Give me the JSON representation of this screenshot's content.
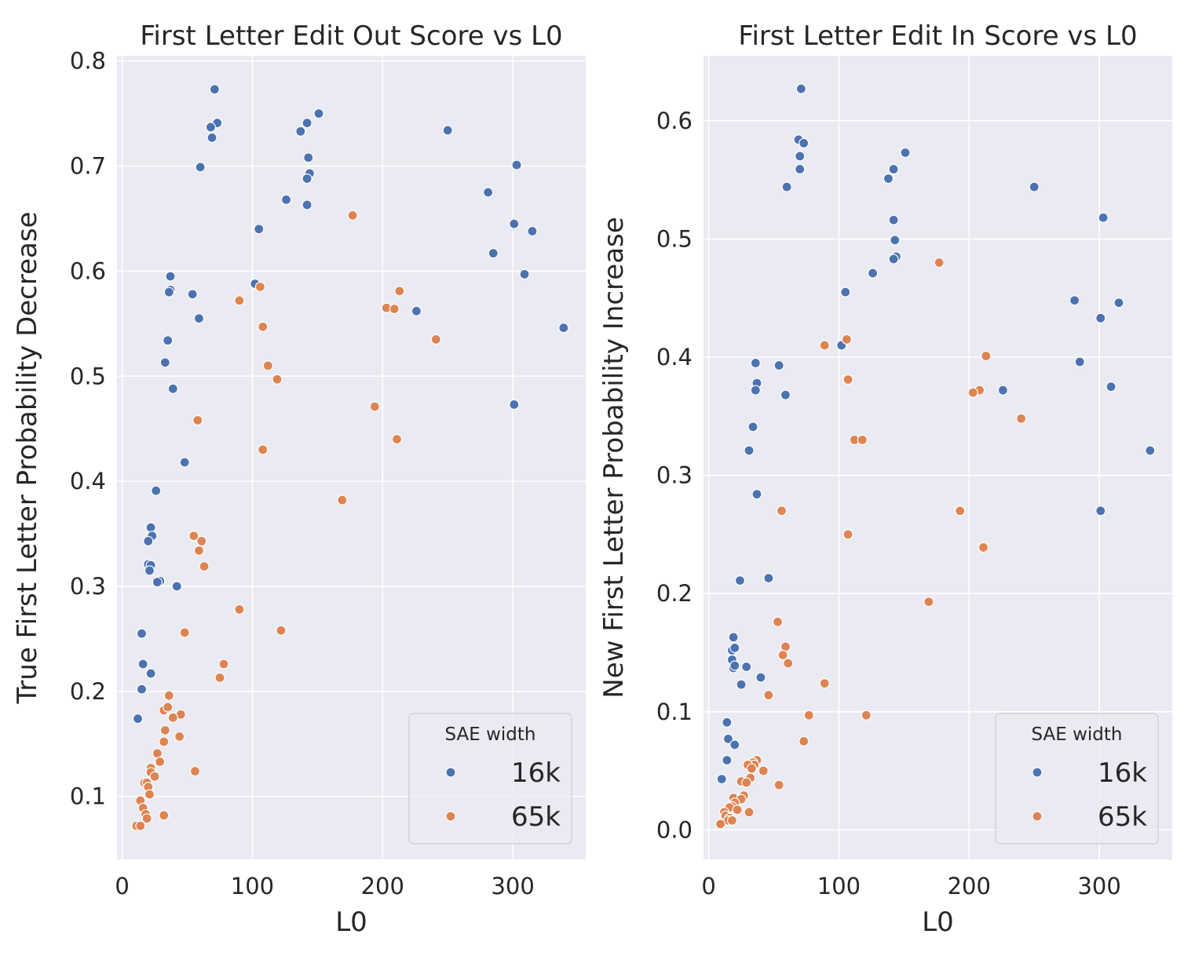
{
  "chart_data": [
    {
      "type": "scatter",
      "title": "First Letter Edit Out Score vs L0",
      "xlabel": "L0",
      "ylabel": "True First Letter Probability Decrease",
      "xlim": [
        -4,
        356
      ],
      "ylim": [
        0.04,
        0.805
      ],
      "xticks": [
        0,
        100,
        200,
        300
      ],
      "yticks": [
        0.1,
        0.2,
        0.3,
        0.4,
        0.5,
        0.6,
        0.7,
        0.8
      ],
      "xtick_labels": [
        "0",
        "100",
        "200",
        "300"
      ],
      "ytick_labels": [
        "0.1",
        "0.2",
        "0.3",
        "0.4",
        "0.5",
        "0.6",
        "0.7",
        "0.8"
      ],
      "grid": true,
      "legend": {
        "title": "SAE width",
        "placement": "lower-right"
      },
      "series": [
        {
          "name": "16k",
          "color": "#4c72b0",
          "points": [
            [
              71,
              0.773
            ],
            [
              73,
              0.741
            ],
            [
              68,
              0.737
            ],
            [
              69,
              0.727
            ],
            [
              60,
              0.699
            ],
            [
              151,
              0.75
            ],
            [
              142,
              0.741
            ],
            [
              137,
              0.733
            ],
            [
              143,
              0.708
            ],
            [
              144,
              0.693
            ],
            [
              142,
              0.688
            ],
            [
              126,
              0.668
            ],
            [
              142,
              0.663
            ],
            [
              250,
              0.734
            ],
            [
              303,
              0.701
            ],
            [
              281,
              0.675
            ],
            [
              301,
              0.645
            ],
            [
              315,
              0.638
            ],
            [
              285,
              0.617
            ],
            [
              105,
              0.64
            ],
            [
              102,
              0.588
            ],
            [
              309,
              0.597
            ],
            [
              226,
              0.562
            ],
            [
              339,
              0.546
            ],
            [
              301,
              0.473
            ],
            [
              37,
              0.595
            ],
            [
              37,
              0.582
            ],
            [
              36,
              0.58
            ],
            [
              54,
              0.578
            ],
            [
              59,
              0.555
            ],
            [
              35,
              0.534
            ],
            [
              33,
              0.513
            ],
            [
              39,
              0.488
            ],
            [
              48,
              0.418
            ],
            [
              26,
              0.391
            ],
            [
              22,
              0.356
            ],
            [
              23,
              0.348
            ],
            [
              20,
              0.343
            ],
            [
              20,
              0.321
            ],
            [
              22,
              0.32
            ],
            [
              21,
              0.315
            ],
            [
              29,
              0.305
            ],
            [
              27,
              0.304
            ],
            [
              42,
              0.3
            ],
            [
              15,
              0.255
            ],
            [
              16,
              0.226
            ],
            [
              22,
              0.217
            ],
            [
              15,
              0.202
            ],
            [
              12,
              0.174
            ]
          ]
        },
        {
          "name": "65k",
          "color": "#dd8452",
          "points": [
            [
              177,
              0.653
            ],
            [
              213,
              0.581
            ],
            [
              106,
              0.585
            ],
            [
              90,
              0.572
            ],
            [
              203,
              0.565
            ],
            [
              209,
              0.564
            ],
            [
              108,
              0.547
            ],
            [
              241,
              0.535
            ],
            [
              112,
              0.51
            ],
            [
              119,
              0.497
            ],
            [
              194,
              0.471
            ],
            [
              58,
              0.458
            ],
            [
              211,
              0.44
            ],
            [
              108,
              0.43
            ],
            [
              169,
              0.382
            ],
            [
              55,
              0.348
            ],
            [
              61,
              0.343
            ],
            [
              59,
              0.334
            ],
            [
              63,
              0.319
            ],
            [
              90,
              0.278
            ],
            [
              48,
              0.256
            ],
            [
              122,
              0.258
            ],
            [
              78,
              0.226
            ],
            [
              75,
              0.213
            ],
            [
              36,
              0.196
            ],
            [
              32,
              0.182
            ],
            [
              35,
              0.185
            ],
            [
              45,
              0.178
            ],
            [
              39,
              0.175
            ],
            [
              33,
              0.163
            ],
            [
              44,
              0.157
            ],
            [
              32,
              0.152
            ],
            [
              27,
              0.141
            ],
            [
              29,
              0.133
            ],
            [
              22,
              0.127
            ],
            [
              22,
              0.123
            ],
            [
              25,
              0.119
            ],
            [
              56,
              0.124
            ],
            [
              17,
              0.113
            ],
            [
              19,
              0.113
            ],
            [
              20,
              0.109
            ],
            [
              21,
              0.102
            ],
            [
              14,
              0.096
            ],
            [
              16,
              0.089
            ],
            [
              18,
              0.083
            ],
            [
              19,
              0.079
            ],
            [
              32,
              0.082
            ],
            [
              11,
              0.072
            ],
            [
              14,
              0.072
            ]
          ]
        }
      ]
    },
    {
      "type": "scatter",
      "title": "First Letter Edit In Score vs L0",
      "xlabel": "L0",
      "ylabel": "New First Letter Probability Increase",
      "xlim": [
        -4,
        356
      ],
      "ylim": [
        -0.025,
        0.655
      ],
      "xticks": [
        0,
        100,
        200,
        300
      ],
      "yticks": [
        0.0,
        0.1,
        0.2,
        0.3,
        0.4,
        0.5,
        0.6
      ],
      "xtick_labels": [
        "0",
        "100",
        "200",
        "300"
      ],
      "ytick_labels": [
        "0.0",
        "0.1",
        "0.2",
        "0.3",
        "0.4",
        "0.5",
        "0.6"
      ],
      "grid": true,
      "legend": {
        "title": "SAE width",
        "placement": "lower-right"
      },
      "series": [
        {
          "name": "16k",
          "color": "#4c72b0",
          "points": [
            [
              71,
              0.627
            ],
            [
              69,
              0.584
            ],
            [
              73,
              0.581
            ],
            [
              70,
              0.57
            ],
            [
              70,
              0.559
            ],
            [
              60,
              0.544
            ],
            [
              151,
              0.573
            ],
            [
              142,
              0.559
            ],
            [
              138,
              0.551
            ],
            [
              142,
              0.516
            ],
            [
              143,
              0.499
            ],
            [
              144,
              0.485
            ],
            [
              142,
              0.483
            ],
            [
              126,
              0.471
            ],
            [
              105,
              0.455
            ],
            [
              102,
              0.41
            ],
            [
              250,
              0.544
            ],
            [
              303,
              0.518
            ],
            [
              281,
              0.448
            ],
            [
              315,
              0.446
            ],
            [
              301,
              0.433
            ],
            [
              285,
              0.396
            ],
            [
              309,
              0.375
            ],
            [
              226,
              0.372
            ],
            [
              339,
              0.321
            ],
            [
              301,
              0.27
            ],
            [
              36,
              0.395
            ],
            [
              54,
              0.393
            ],
            [
              37,
              0.378
            ],
            [
              36,
              0.372
            ],
            [
              59,
              0.368
            ],
            [
              34,
              0.341
            ],
            [
              31,
              0.321
            ],
            [
              37,
              0.284
            ],
            [
              46,
              0.213
            ],
            [
              24,
              0.211
            ],
            [
              19,
              0.163
            ],
            [
              18,
              0.152
            ],
            [
              20,
              0.154
            ],
            [
              18,
              0.144
            ],
            [
              19,
              0.137
            ],
            [
              20,
              0.139
            ],
            [
              29,
              0.138
            ],
            [
              40,
              0.129
            ],
            [
              25,
              0.123
            ],
            [
              14,
              0.091
            ],
            [
              15,
              0.077
            ],
            [
              20,
              0.072
            ],
            [
              14,
              0.059
            ],
            [
              10,
              0.043
            ]
          ]
        },
        {
          "name": "65k",
          "color": "#dd8452",
          "points": [
            [
              177,
              0.48
            ],
            [
              106,
              0.415
            ],
            [
              89,
              0.41
            ],
            [
              213,
              0.401
            ],
            [
              107,
              0.381
            ],
            [
              208,
              0.372
            ],
            [
              203,
              0.37
            ],
            [
              240,
              0.348
            ],
            [
              112,
              0.33
            ],
            [
              118,
              0.33
            ],
            [
              56,
              0.27
            ],
            [
              193,
              0.27
            ],
            [
              107,
              0.25
            ],
            [
              211,
              0.239
            ],
            [
              169,
              0.193
            ],
            [
              53,
              0.176
            ],
            [
              59,
              0.155
            ],
            [
              57,
              0.148
            ],
            [
              61,
              0.141
            ],
            [
              89,
              0.124
            ],
            [
              46,
              0.114
            ],
            [
              77,
              0.097
            ],
            [
              121,
              0.097
            ],
            [
              73,
              0.075
            ],
            [
              37,
              0.059
            ],
            [
              34,
              0.057
            ],
            [
              35,
              0.055
            ],
            [
              30,
              0.055
            ],
            [
              33,
              0.052
            ],
            [
              42,
              0.05
            ],
            [
              32,
              0.044
            ],
            [
              25,
              0.041
            ],
            [
              29,
              0.04
            ],
            [
              54,
              0.038
            ],
            [
              27,
              0.029
            ],
            [
              19,
              0.027
            ],
            [
              25,
              0.026
            ],
            [
              20,
              0.023
            ],
            [
              18,
              0.02
            ],
            [
              16,
              0.019
            ],
            [
              22,
              0.017
            ],
            [
              12,
              0.015
            ],
            [
              31,
              0.015
            ],
            [
              14,
              0.011
            ],
            [
              13,
              0.012
            ],
            [
              16,
              0.01
            ],
            [
              15,
              0.008
            ],
            [
              18,
              0.008
            ],
            [
              9,
              0.005
            ]
          ]
        }
      ]
    }
  ]
}
